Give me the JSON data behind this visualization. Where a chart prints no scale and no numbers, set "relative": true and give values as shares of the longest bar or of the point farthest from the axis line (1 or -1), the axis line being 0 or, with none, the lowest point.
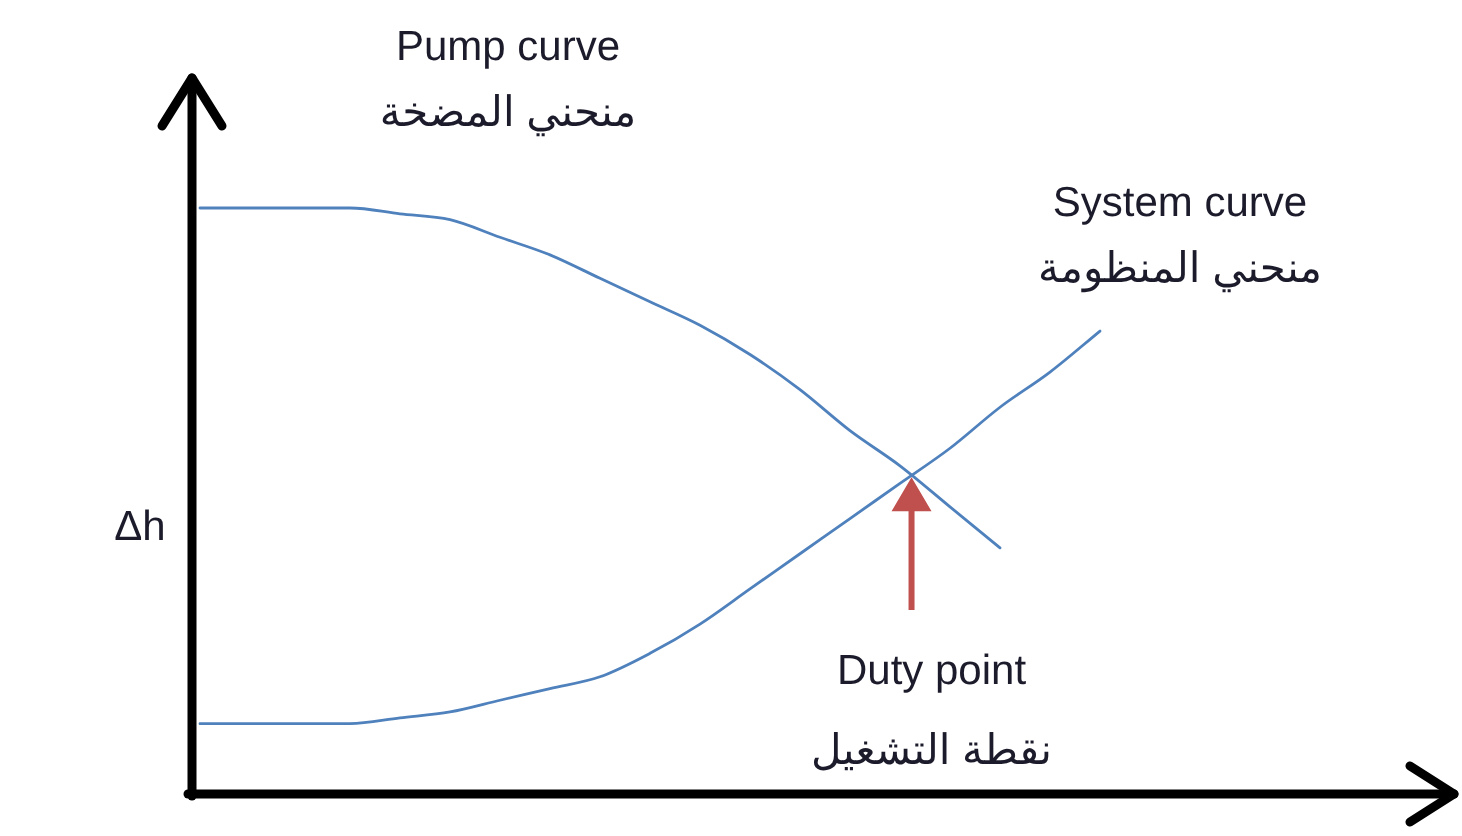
{
  "chart_data": {
    "type": "line",
    "relative": true,
    "ylabel": "Δh",
    "categories": [
      null,
      null,
      null,
      null,
      null,
      null,
      null,
      null,
      null,
      null,
      null,
      null,
      null,
      null,
      null,
      null,
      null,
      null,
      null
    ],
    "series": [
      {
        "name": "Pump curve\nمنحني المضخة",
        "color": "#4f81bd",
        "values": [
          1.0,
          1.0,
          1.0,
          1.0,
          0.99,
          0.98,
          0.95,
          0.92,
          0.88,
          0.84,
          0.8,
          0.75,
          0.69,
          0.62,
          0.56,
          0.49,
          0.42,
          null,
          null
        ]
      },
      {
        "name": "System curve\nمنحني المنظومة",
        "color": "#4f81bd",
        "values": [
          0.12,
          0.12,
          0.12,
          0.12,
          0.13,
          0.14,
          0.16,
          0.18,
          0.2,
          0.24,
          0.29,
          0.35,
          0.41,
          0.47,
          0.53,
          0.59,
          0.66,
          0.72,
          0.79
        ]
      }
    ],
    "annotations": [
      "Duty point\nنقطة التشغيل"
    ]
  }
}
